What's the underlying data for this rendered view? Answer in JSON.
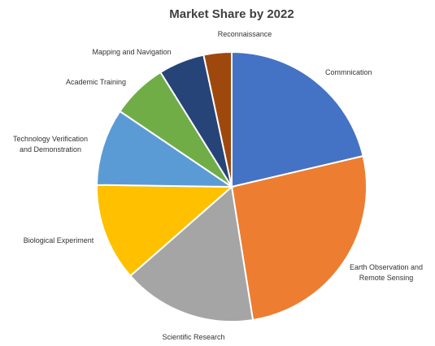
{
  "chart_data": {
    "type": "pie",
    "title": "Market Share by 2022",
    "slices": [
      {
        "label": "Commnication",
        "value": 21.7,
        "color": "#4472C4"
      },
      {
        "label": "Earth Observation and Remote Sensing",
        "value": 26.6,
        "color": "#ED7D31"
      },
      {
        "label": "Scientific Research",
        "value": 16.3,
        "color": "#A5A5A5"
      },
      {
        "label": "Biological Experiment",
        "value": 11.9,
        "color": "#FFC000"
      },
      {
        "label": "Technology Verification and Demonstration",
        "value": 9.4,
        "color": "#5B9BD5"
      },
      {
        "label": "Academic Training",
        "value": 6.8,
        "color": "#70AD47"
      },
      {
        "label": "Mapping and Navigation",
        "value": 5.6,
        "color": "#264478"
      },
      {
        "label": "Reconnaissance",
        "value": 3.4,
        "color": "#9E480E"
      }
    ]
  }
}
